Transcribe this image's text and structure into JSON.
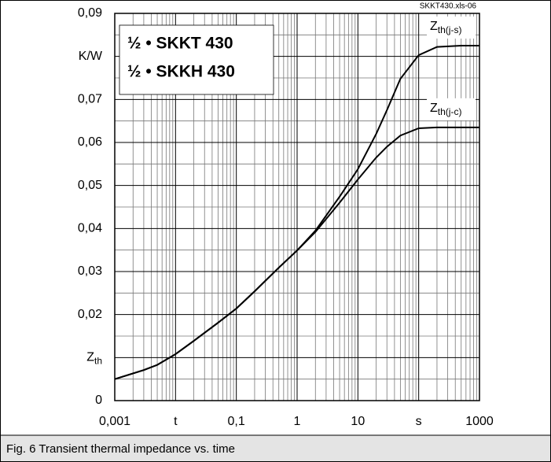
{
  "chart_data": {
    "type": "line",
    "file_tag": "SKKT430.xls-06",
    "legend": [
      "½ • SKKT 430",
      "½ • SKKH 430"
    ],
    "caption": "Fig. 6 Transient thermal impedance vs. time",
    "x": [
      0.001,
      0.003,
      0.005,
      0.01,
      0.02,
      0.05,
      0.1,
      0.2,
      0.5,
      1,
      2,
      5,
      10,
      20,
      30,
      50,
      100,
      200,
      500,
      1000
    ],
    "series": [
      {
        "name": "Z",
        "name_sub": "th(j-s)",
        "color": "#000000",
        "values": [
          0.005,
          0.0071,
          0.0083,
          0.0108,
          0.0139,
          0.0181,
          0.0214,
          0.0254,
          0.0309,
          0.0349,
          0.0395,
          0.0474,
          0.0538,
          0.062,
          0.0675,
          0.0748,
          0.0803,
          0.0822,
          0.0825,
          0.0825
        ]
      },
      {
        "name": "Z",
        "name_sub": "th(j-c)",
        "color": "#000000",
        "values": [
          0.005,
          0.0071,
          0.0083,
          0.0108,
          0.0139,
          0.0181,
          0.0214,
          0.0254,
          0.0309,
          0.0349,
          0.0392,
          0.046,
          0.0514,
          0.0565,
          0.059,
          0.0616,
          0.0633,
          0.0635,
          0.0635,
          0.0635
        ]
      }
    ],
    "xlog": true,
    "minor_grid": true,
    "grid": true,
    "xlim": [
      0.001,
      1000
    ],
    "xticks": [
      {
        "value": 0.001,
        "label": "0,001"
      },
      {
        "value": 0.01,
        "label": "t"
      },
      {
        "value": 0.1,
        "label": "0,1"
      },
      1,
      10,
      {
        "value": 100,
        "label": "s"
      },
      1000
    ],
    "ylim": [
      0,
      0.09
    ],
    "yticks": [
      0,
      {
        "value": 0.01,
        "label": "Z",
        "label_sub": "th"
      },
      {
        "value": 0.02,
        "label": "0,02"
      },
      {
        "value": 0.03,
        "label": "0,03"
      },
      {
        "value": 0.04,
        "label": "0,04"
      },
      {
        "value": 0.05,
        "label": "0,05"
      },
      {
        "value": 0.06,
        "label": "0,06"
      },
      {
        "value": 0.07,
        "label": "0,07"
      },
      {
        "value": 0.08,
        "label": "K/W"
      },
      {
        "value": 0.09,
        "label": "0,09"
      }
    ]
  }
}
